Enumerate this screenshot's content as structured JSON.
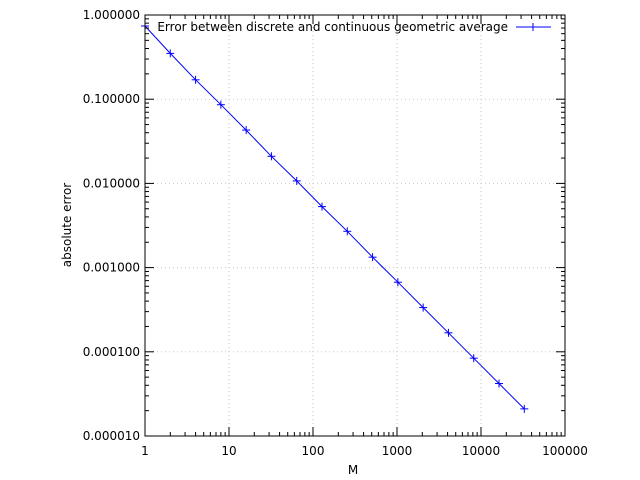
{
  "chart_data": {
    "type": "line",
    "title": "",
    "xlabel": "M",
    "ylabel": "absolute error",
    "x_scale": "log",
    "y_scale": "log",
    "xlim": [
      1,
      100000
    ],
    "ylim": [
      1e-05,
      1
    ],
    "x_ticks": [
      {
        "value": 1,
        "label": "1"
      },
      {
        "value": 10,
        "label": "10"
      },
      {
        "value": 100,
        "label": "100"
      },
      {
        "value": 1000,
        "label": "1000"
      },
      {
        "value": 10000,
        "label": "10000"
      },
      {
        "value": 100000,
        "label": "100000"
      }
    ],
    "y_ticks": [
      {
        "value": 1,
        "label": "1.000000"
      },
      {
        "value": 0.1,
        "label": "0.100000"
      },
      {
        "value": 0.01,
        "label": "0.010000"
      },
      {
        "value": 0.001,
        "label": "0.001000"
      },
      {
        "value": 0.0001,
        "label": "0.000100"
      },
      {
        "value": 1e-05,
        "label": "0.000010"
      }
    ],
    "grid": true,
    "legend_position": "top-right",
    "series": [
      {
        "name": "Error between discrete and continuous geometric average",
        "color": "#0000ff",
        "marker": "plus",
        "x": [
          1,
          2,
          4,
          8,
          16,
          32,
          64,
          128,
          256,
          512,
          1024,
          2048,
          4096,
          8192,
          16384,
          32768
        ],
        "y": [
          0.74,
          0.35,
          0.17,
          0.086,
          0.043,
          0.021,
          0.0107,
          0.0053,
          0.0027,
          0.00133,
          0.00067,
          0.000335,
          0.000168,
          8.4e-05,
          4.2e-05,
          2.1e-05
        ]
      }
    ]
  }
}
